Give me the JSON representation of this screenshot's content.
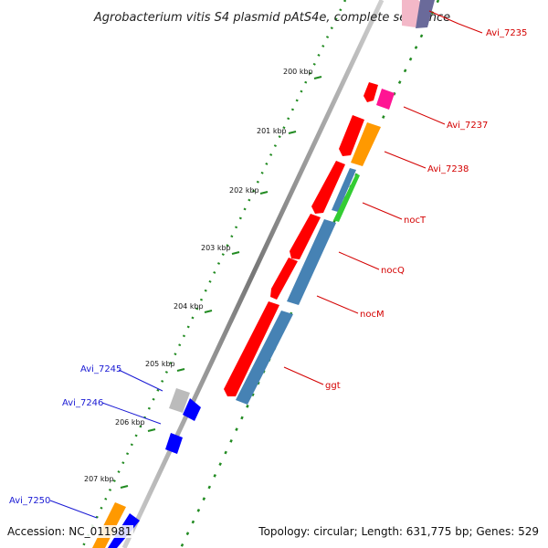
{
  "title": "Agrobacterium vitis S4 plasmid pAtS4e, complete sequence",
  "footer": {
    "accession": "Accession: NC_011981",
    "topology": "Topology: circular; Length: 631,775 bp; Genes: 529"
  },
  "kbp_labels": [
    "200 kbp",
    "201 kbp",
    "202 kbp",
    "203 kbp",
    "204 kbp",
    "205 kbp",
    "206 kbp",
    "207 kbp"
  ],
  "gene_labels": [
    {
      "name": "Avi_7235",
      "color": "#d40000"
    },
    {
      "name": "Avi_7237",
      "color": "#d40000"
    },
    {
      "name": "Avi_7238",
      "color": "#d40000"
    },
    {
      "name": "nocT",
      "color": "#d40000"
    },
    {
      "name": "nocQ",
      "color": "#d40000"
    },
    {
      "name": "nocM",
      "color": "#d40000"
    },
    {
      "name": "ggt",
      "color": "#d40000"
    },
    {
      "name": "Avi_7245",
      "color": "#1a1ad4"
    },
    {
      "name": "Avi_7246",
      "color": "#1a1ad4"
    },
    {
      "name": "Avi_7250",
      "color": "#1a1ad4"
    }
  ],
  "colors": {
    "forward_gene": "#ff0000",
    "reverse_gene": "#4682b4",
    "orange_gene": "#ff9900",
    "magenta_gene": "#ff1493",
    "green_gene": "#33cc33",
    "blue_gene": "#0000ff",
    "grey_gene": "#bbbbbb",
    "backbone": "#888888",
    "gc_track": "#228b22"
  }
}
